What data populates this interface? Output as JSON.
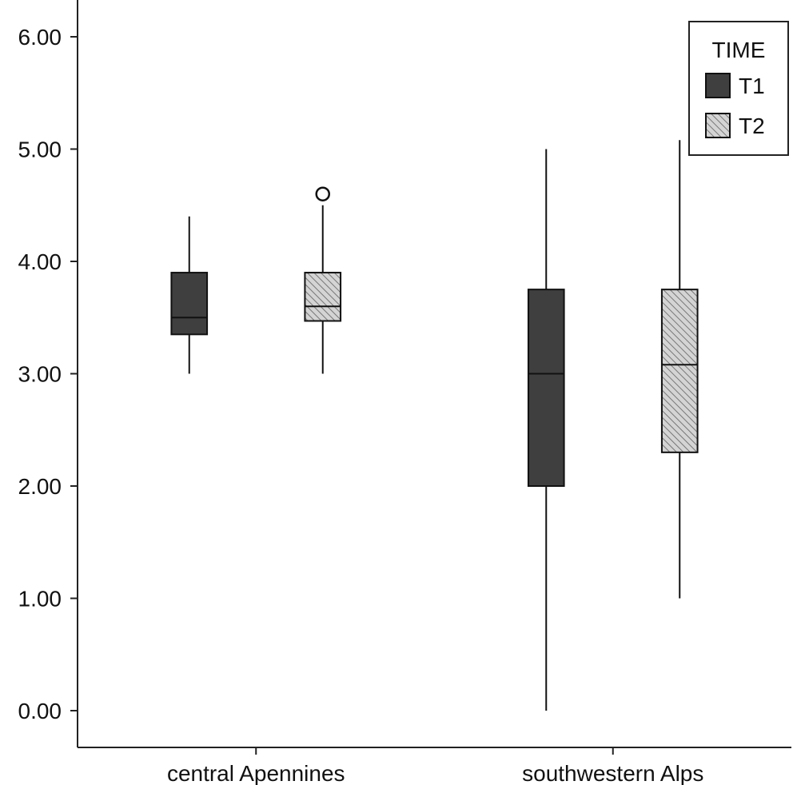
{
  "chart_data": {
    "type": "boxplot",
    "title": "",
    "xlabel": "",
    "ylabel": "",
    "ylim": [
      0,
      6.5
    ],
    "y_ticks": [
      "0.00",
      "1.00",
      "2.00",
      "3.00",
      "4.00",
      "5.00",
      "6.00"
    ],
    "categories": [
      "central Apennines",
      "southwestern Alps"
    ],
    "legend": {
      "title": "TIME",
      "placement": "top-right",
      "entries": [
        "T1",
        "T2"
      ]
    },
    "series": [
      {
        "name": "T1",
        "color": "#3f3f3f",
        "pattern": "solid",
        "boxes": [
          {
            "category": "central Apennines",
            "whisker_low": 3.0,
            "q1": 3.35,
            "median": 3.5,
            "q3": 3.9,
            "whisker_high": 4.4,
            "outliers": []
          },
          {
            "category": "southwestern Alps",
            "whisker_low": 0.0,
            "q1": 2.0,
            "median": 3.0,
            "q3": 3.75,
            "whisker_high": 5.0,
            "outliers": []
          }
        ]
      },
      {
        "name": "T2",
        "color": "#cfcfcf",
        "pattern": "hatched",
        "boxes": [
          {
            "category": "central Apennines",
            "whisker_low": 3.0,
            "q1": 3.47,
            "median": 3.6,
            "q3": 3.9,
            "whisker_high": 4.5,
            "outliers": [
              4.6
            ]
          },
          {
            "category": "southwestern Alps",
            "whisker_low": 1.0,
            "q1": 2.3,
            "median": 3.08,
            "q3": 3.75,
            "whisker_high": 5.08,
            "outliers": []
          }
        ]
      }
    ]
  }
}
